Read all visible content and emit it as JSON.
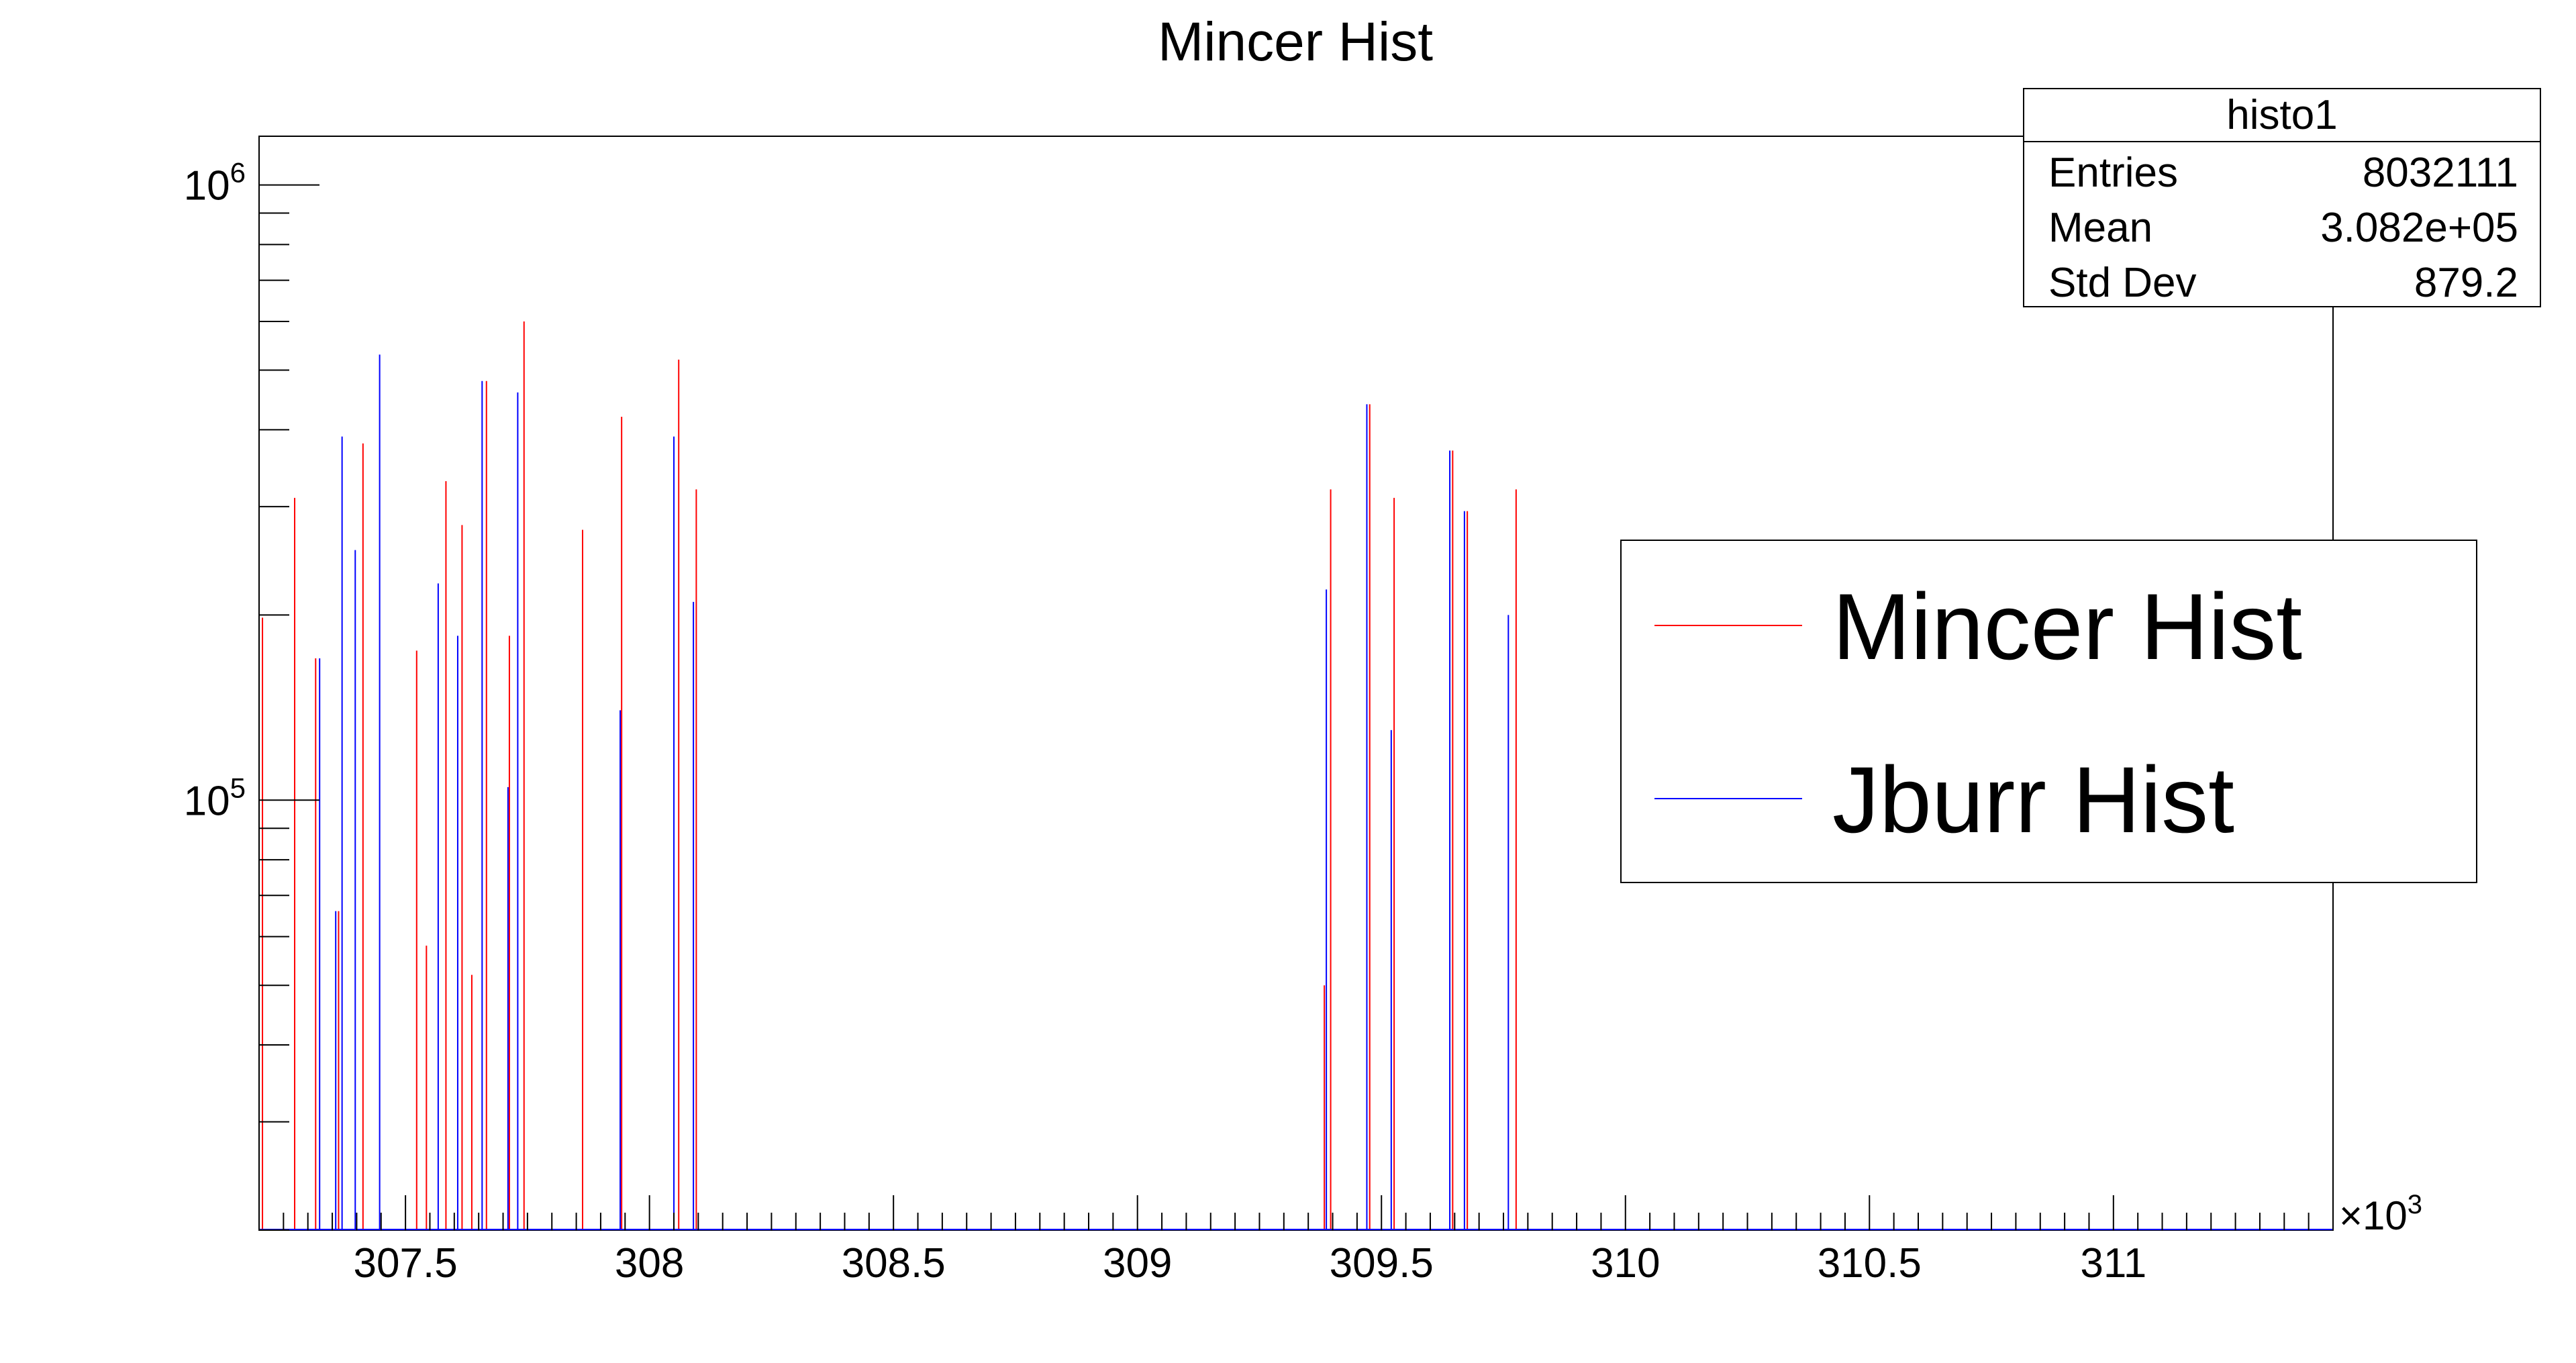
{
  "chart_data": {
    "type": "bar",
    "title": "Mincer Hist",
    "xlabel": "",
    "ylabel": "",
    "x_multiplier_label": "×10",
    "x_multiplier_exp": "3",
    "xlim": [
      307.2,
      311.45
    ],
    "x_unit_scale": 1000,
    "ylim": [
      20000,
      1200000
    ],
    "y_scale": "log",
    "y_ticks": [
      {
        "value": 100000,
        "base": "10",
        "exp": "5"
      },
      {
        "value": 1000000,
        "base": "10",
        "exp": "6"
      }
    ],
    "x_ticks": [
      "307.5",
      "308",
      "308.5",
      "309",
      "309.5",
      "310",
      "310.5",
      "311"
    ],
    "grid": false,
    "legend_position": "right",
    "stats_box": {
      "title": "histo1",
      "rows": [
        {
          "label": "Entries",
          "value": "8032111"
        },
        {
          "label": "Mean",
          "value": "3.082e+05"
        },
        {
          "label": "Std Dev",
          "value": "879.2"
        }
      ]
    },
    "series": [
      {
        "name": "Mincer Hist",
        "color": "#ff0000",
        "points": [
          [
            307.209,
            198000
          ],
          [
            307.275,
            310000
          ],
          [
            307.318,
            170000
          ],
          [
            307.365,
            66000
          ],
          [
            307.415,
            380000
          ],
          [
            307.525,
            175000
          ],
          [
            307.545,
            58000
          ],
          [
            307.585,
            330000
          ],
          [
            307.618,
            280000
          ],
          [
            307.638,
            52000
          ],
          [
            307.668,
            480000
          ],
          [
            307.715,
            185000
          ],
          [
            307.745,
            600000
          ],
          [
            307.865,
            275000
          ],
          [
            307.945,
            420000
          ],
          [
            308.062,
            520000
          ],
          [
            308.098,
            320000
          ],
          [
            309.385,
            50000
          ],
          [
            309.398,
            320000
          ],
          [
            309.478,
            440000
          ],
          [
            309.528,
            310000
          ],
          [
            309.648,
            370000
          ],
          [
            309.678,
            295000
          ],
          [
            309.778,
            320000
          ]
        ]
      },
      {
        "name": "Jburr Hist",
        "color": "#0000ff",
        "points": [
          [
            307.322,
            170000
          ],
          [
            307.355,
            66000
          ],
          [
            307.368,
            390000
          ],
          [
            307.395,
            255000
          ],
          [
            307.445,
            530000
          ],
          [
            307.565,
            225000
          ],
          [
            307.605,
            185000
          ],
          [
            307.655,
            480000
          ],
          [
            307.708,
            105000
          ],
          [
            307.728,
            460000
          ],
          [
            307.938,
            140000
          ],
          [
            308.048,
            390000
          ],
          [
            308.088,
            210000
          ],
          [
            309.385,
            220000
          ],
          [
            309.468,
            440000
          ],
          [
            309.518,
            130000
          ],
          [
            309.638,
            370000
          ],
          [
            309.668,
            295000
          ],
          [
            309.758,
            200000
          ]
        ]
      }
    ]
  }
}
